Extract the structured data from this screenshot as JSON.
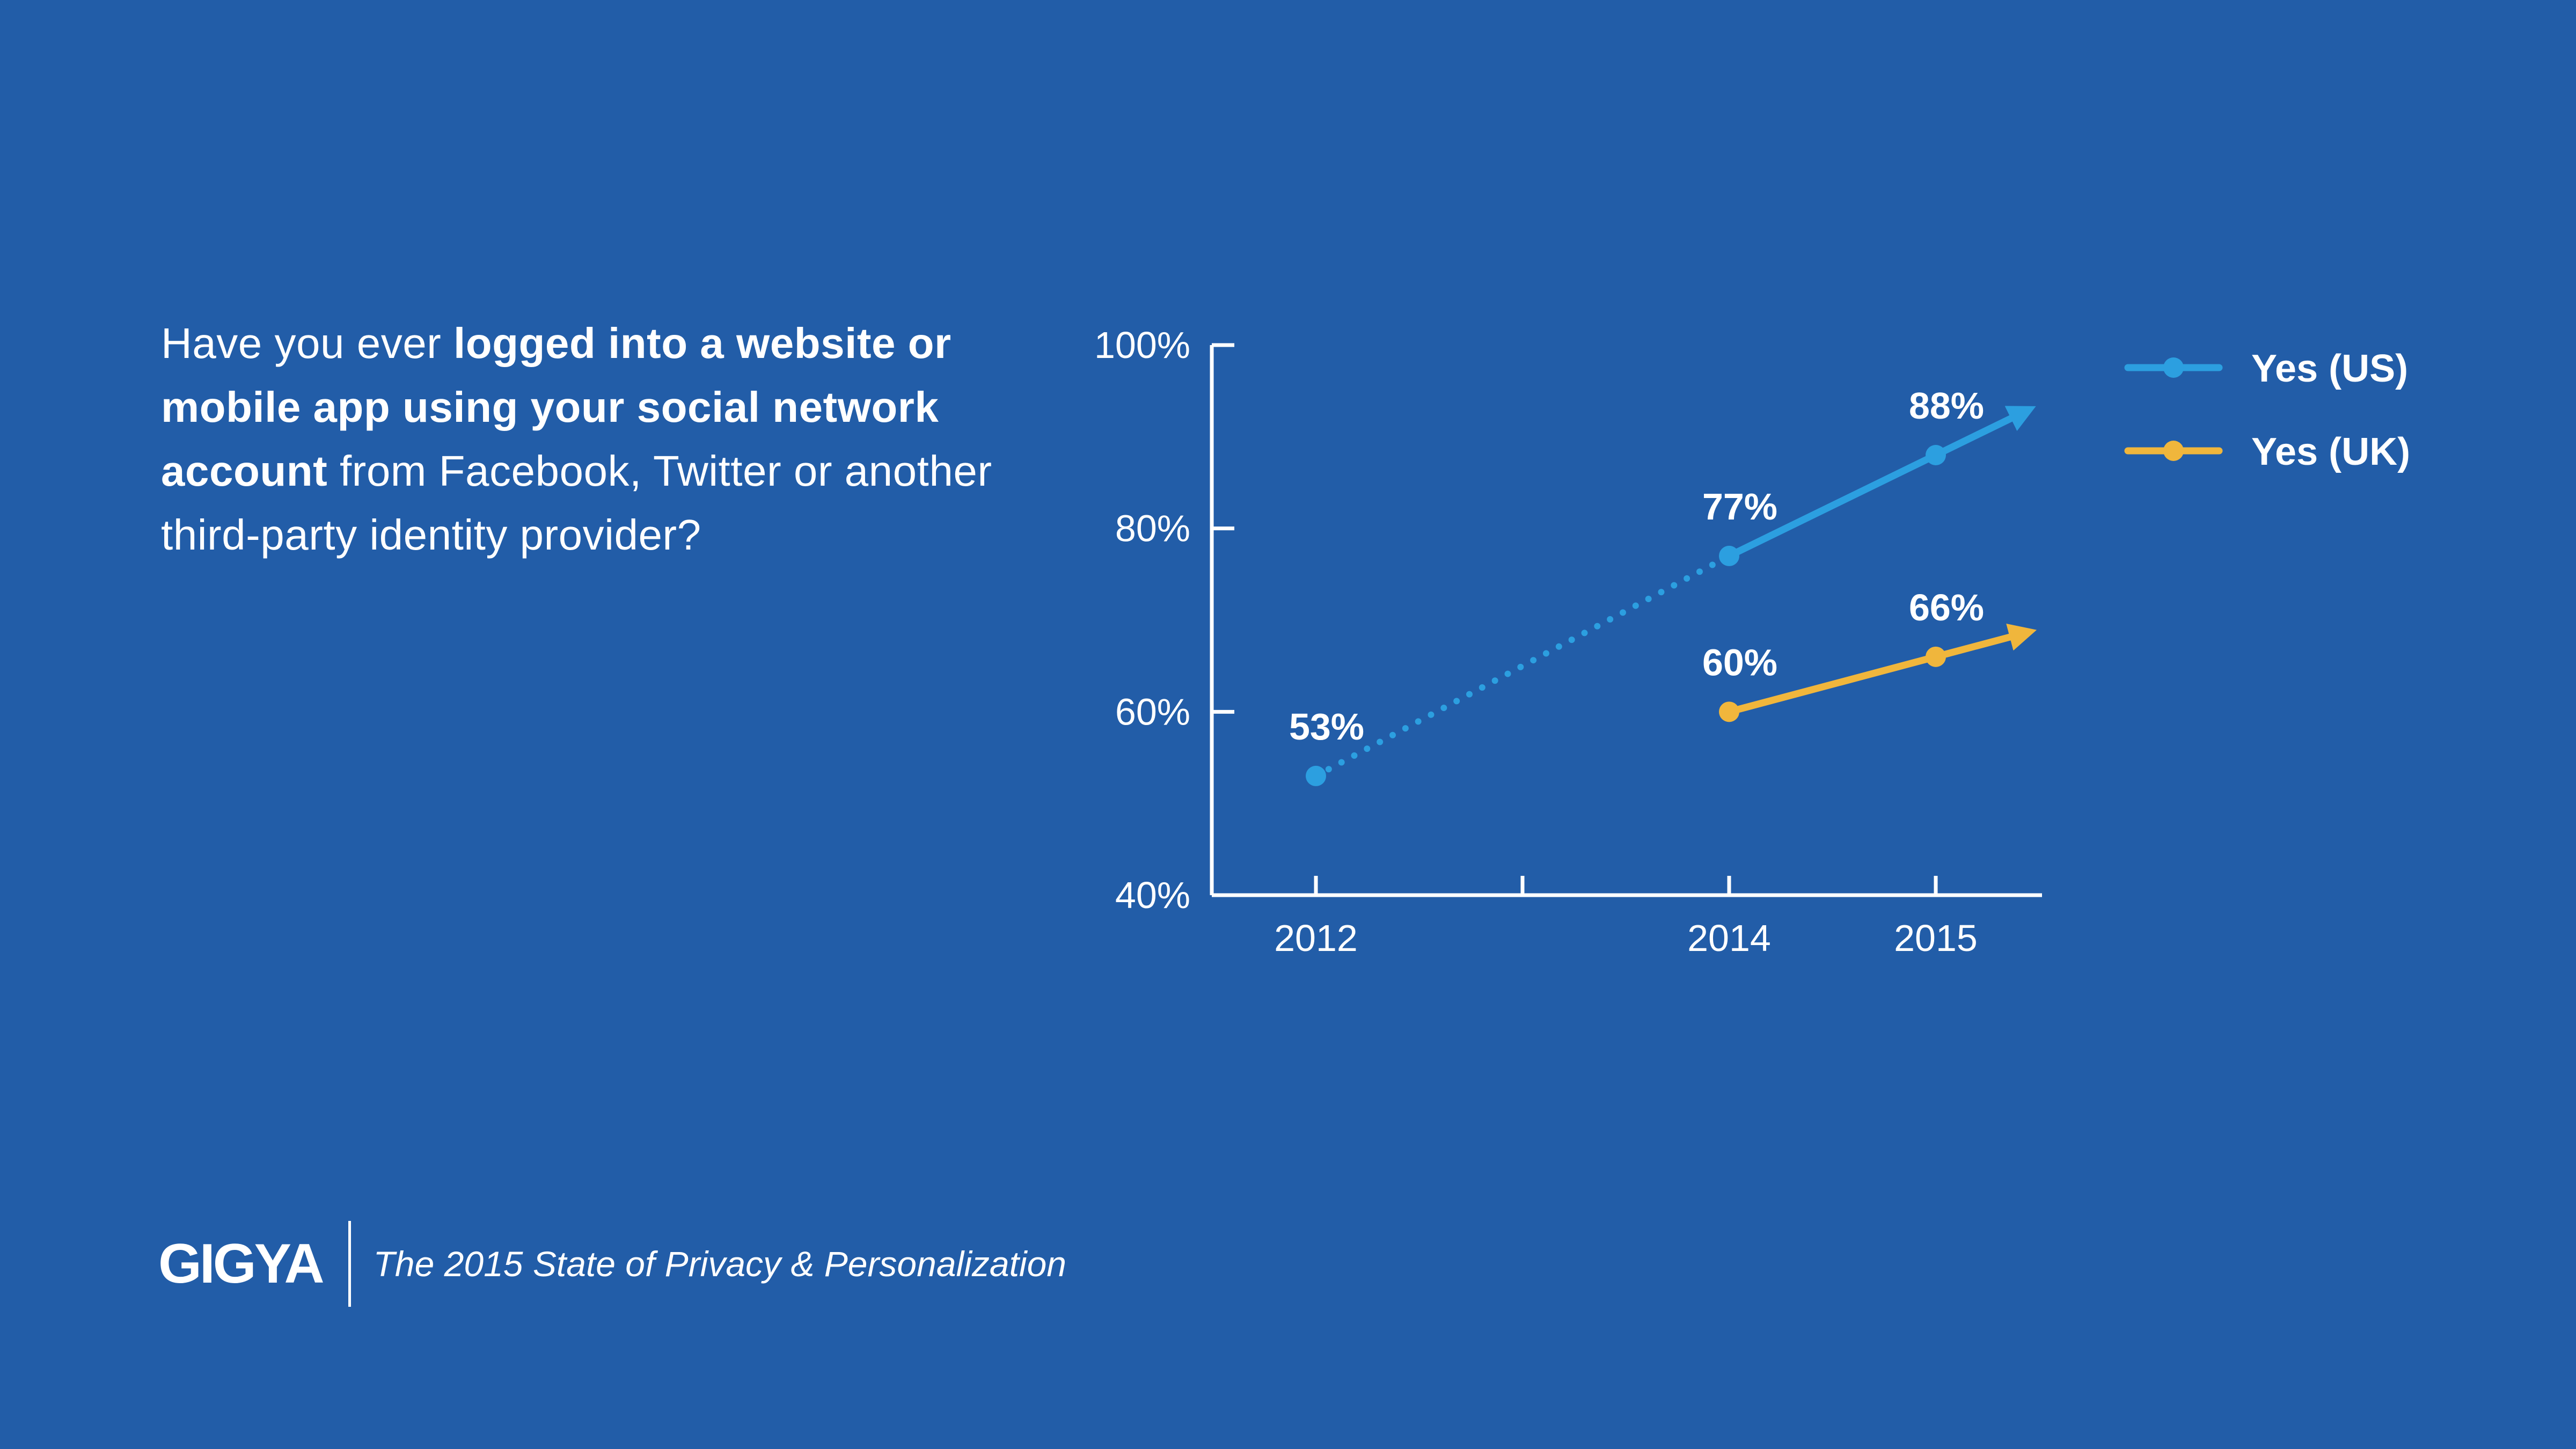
{
  "question": {
    "part1": "Have you ever ",
    "bold": "logged into a website or mobile app using your social network account",
    "part2": " from Facebook, Twitter or another third-party identity provider?"
  },
  "footer": {
    "logo": "GIGYA",
    "report_title": "The 2015 State of Privacy & Personalization"
  },
  "colors": {
    "background": "#225da8",
    "us": "#2c9fe0",
    "uk": "#f0b63c",
    "axis": "#ffffff"
  },
  "chart_data": {
    "type": "line",
    "title": "",
    "xlabel": "",
    "ylabel": "",
    "ylim": [
      40,
      100
    ],
    "yticks": [
      "40%",
      "60%",
      "80%",
      "100%"
    ],
    "yticks_values": [
      40,
      60,
      80,
      100
    ],
    "xticks": [
      "2012",
      "2014",
      "2015"
    ],
    "xticks_values": [
      2012,
      2014,
      2015
    ],
    "xlim": [
      2011.5,
      2015.5
    ],
    "series": [
      {
        "name": "Yes (US)",
        "color": "#2c9fe0",
        "points": [
          {
            "x": 2012,
            "y": 53,
            "label": "53%"
          },
          {
            "x": 2014,
            "y": 77,
            "label": "77%"
          },
          {
            "x": 2015,
            "y": 88,
            "label": "88%"
          }
        ],
        "dotted_between": [
          2012,
          2014
        ]
      },
      {
        "name": "Yes (UK)",
        "color": "#f0b63c",
        "points": [
          {
            "x": 2014,
            "y": 60,
            "label": "60%"
          },
          {
            "x": 2015,
            "y": 66,
            "label": "66%"
          }
        ]
      }
    ],
    "legend_position": "top-right",
    "grid": false
  }
}
